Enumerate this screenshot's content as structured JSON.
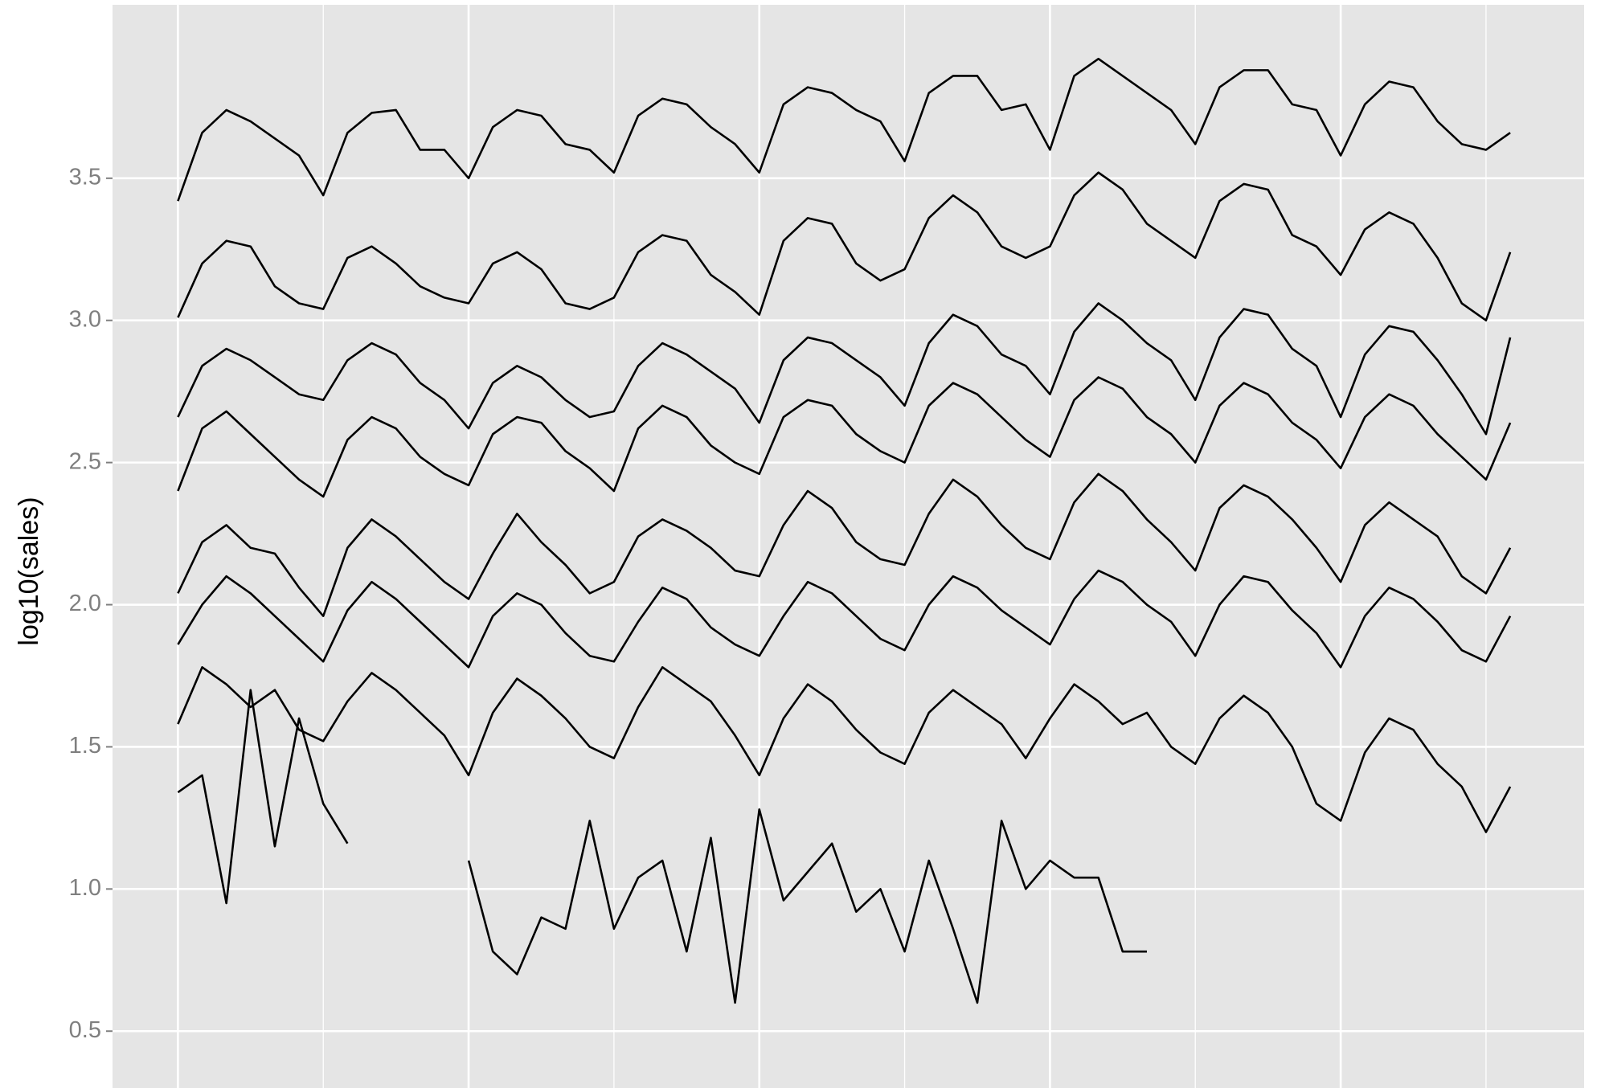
{
  "chart_data": {
    "type": "line",
    "y_label": "log10(sales)",
    "color": "#000000",
    "background": "#e5e5e5",
    "grid": true,
    "xlim": [
      -5.4,
      116.1
    ],
    "ylim": [
      0.3,
      4.11
    ],
    "xticks": [
      0,
      12,
      24,
      36,
      48,
      60,
      72,
      84,
      96,
      108
    ],
    "yticks": [
      0.5,
      {
        "value": 1,
        "label": "1.0"
      },
      1.5,
      {
        "value": 2,
        "label": "2.0"
      },
      2.5,
      {
        "value": 3,
        "label": "3.0"
      },
      3.5
    ],
    "x": [
      0,
      2,
      4,
      6,
      8,
      10,
      12,
      14,
      16,
      18,
      20,
      22,
      24,
      26,
      28,
      30,
      32,
      34,
      36,
      38,
      40,
      42,
      44,
      46,
      48,
      50,
      52,
      54,
      56,
      58,
      60,
      62,
      64,
      66,
      68,
      70,
      72,
      74,
      76,
      78,
      80,
      82,
      84,
      86,
      88,
      90,
      92,
      94,
      96,
      98,
      100,
      102,
      104,
      106,
      108,
      110
    ],
    "series": [
      {
        "values": [
          3.42,
          3.66,
          3.74,
          3.7,
          3.64,
          3.58,
          3.44,
          3.66,
          3.73,
          3.74,
          3.6,
          3.6,
          3.5,
          3.68,
          3.74,
          3.72,
          3.62,
          3.6,
          3.52,
          3.72,
          3.78,
          3.76,
          3.68,
          3.62,
          3.52,
          3.76,
          3.82,
          3.8,
          3.74,
          3.7,
          3.56,
          3.8,
          3.86,
          3.86,
          3.74,
          3.76,
          3.6,
          3.86,
          3.92,
          3.86,
          3.8,
          3.74,
          3.62,
          3.82,
          3.88,
          3.88,
          3.76,
          3.74,
          3.58,
          3.76,
          3.84,
          3.82,
          3.7,
          3.62,
          3.6,
          3.66
        ]
      },
      {
        "values": [
          3.01,
          3.2,
          3.28,
          3.26,
          3.12,
          3.06,
          3.04,
          3.22,
          3.26,
          3.2,
          3.12,
          3.08,
          3.06,
          3.2,
          3.24,
          3.18,
          3.06,
          3.04,
          3.08,
          3.24,
          3.3,
          3.28,
          3.16,
          3.1,
          3.02,
          3.28,
          3.36,
          3.34,
          3.2,
          3.14,
          3.18,
          3.36,
          3.44,
          3.38,
          3.26,
          3.22,
          3.26,
          3.44,
          3.52,
          3.46,
          3.34,
          3.28,
          3.22,
          3.42,
          3.48,
          3.46,
          3.3,
          3.26,
          3.16,
          3.32,
          3.38,
          3.34,
          3.22,
          3.06,
          3.0,
          3.24
        ]
      },
      {
        "values": [
          2.66,
          2.84,
          2.9,
          2.86,
          2.8,
          2.74,
          2.72,
          2.86,
          2.92,
          2.88,
          2.78,
          2.72,
          2.62,
          2.78,
          2.84,
          2.8,
          2.72,
          2.66,
          2.68,
          2.84,
          2.92,
          2.88,
          2.82,
          2.76,
          2.64,
          2.86,
          2.94,
          2.92,
          2.86,
          2.8,
          2.7,
          2.92,
          3.02,
          2.98,
          2.88,
          2.84,
          2.74,
          2.96,
          3.06,
          3.0,
          2.92,
          2.86,
          2.72,
          2.94,
          3.04,
          3.02,
          2.9,
          2.84,
          2.66,
          2.88,
          2.98,
          2.96,
          2.86,
          2.74,
          2.6,
          2.94
        ]
      },
      {
        "values": [
          2.4,
          2.62,
          2.68,
          2.6,
          2.52,
          2.44,
          2.38,
          2.58,
          2.66,
          2.62,
          2.52,
          2.46,
          2.42,
          2.6,
          2.66,
          2.64,
          2.54,
          2.48,
          2.4,
          2.62,
          2.7,
          2.66,
          2.56,
          2.5,
          2.46,
          2.66,
          2.72,
          2.7,
          2.6,
          2.54,
          2.5,
          2.7,
          2.78,
          2.74,
          2.66,
          2.58,
          2.52,
          2.72,
          2.8,
          2.76,
          2.66,
          2.6,
          2.5,
          2.7,
          2.78,
          2.74,
          2.64,
          2.58,
          2.48,
          2.66,
          2.74,
          2.7,
          2.6,
          2.52,
          2.44,
          2.64
        ]
      },
      {
        "values": [
          2.04,
          2.22,
          2.28,
          2.2,
          2.18,
          2.06,
          1.96,
          2.2,
          2.3,
          2.24,
          2.16,
          2.08,
          2.02,
          2.18,
          2.32,
          2.22,
          2.14,
          2.04,
          2.08,
          2.24,
          2.3,
          2.26,
          2.2,
          2.12,
          2.1,
          2.28,
          2.4,
          2.34,
          2.22,
          2.16,
          2.14,
          2.32,
          2.44,
          2.38,
          2.28,
          2.2,
          2.16,
          2.36,
          2.46,
          2.4,
          2.3,
          2.22,
          2.12,
          2.34,
          2.42,
          2.38,
          2.3,
          2.2,
          2.08,
          2.28,
          2.36,
          2.3,
          2.24,
          2.1,
          2.04,
          2.2
        ]
      },
      {
        "values": [
          1.86,
          2.0,
          2.1,
          2.04,
          1.96,
          1.88,
          1.8,
          1.98,
          2.08,
          2.02,
          1.94,
          1.86,
          1.78,
          1.96,
          2.04,
          2.0,
          1.9,
          1.82,
          1.8,
          1.94,
          2.06,
          2.02,
          1.92,
          1.86,
          1.82,
          1.96,
          2.08,
          2.04,
          1.96,
          1.88,
          1.84,
          2.0,
          2.1,
          2.06,
          1.98,
          1.92,
          1.86,
          2.02,
          2.12,
          2.08,
          2.0,
          1.94,
          1.82,
          2.0,
          2.1,
          2.08,
          1.98,
          1.9,
          1.78,
          1.96,
          2.06,
          2.02,
          1.94,
          1.84,
          1.8,
          1.96
        ]
      },
      {
        "values": [
          1.58,
          1.78,
          1.72,
          1.64,
          1.7,
          1.56,
          1.52,
          1.66,
          1.76,
          1.7,
          1.62,
          1.54,
          1.4,
          1.62,
          1.74,
          1.68,
          1.6,
          1.5,
          1.46,
          1.64,
          1.78,
          1.72,
          1.66,
          1.54,
          1.4,
          1.6,
          1.72,
          1.66,
          1.56,
          1.48,
          1.44,
          1.62,
          1.7,
          1.64,
          1.58,
          1.46,
          1.6,
          1.72,
          1.66,
          1.58,
          1.62,
          1.5,
          1.44,
          1.6,
          1.68,
          1.62,
          1.5,
          1.3,
          1.24,
          1.48,
          1.6,
          1.56,
          1.44,
          1.36,
          1.2,
          1.36
        ]
      },
      {
        "values": [
          null,
          null,
          null,
          null,
          null,
          null,
          null,
          null,
          null,
          null,
          null,
          null,
          1.1,
          0.78,
          0.7,
          0.9,
          0.86,
          1.24,
          0.86,
          1.04,
          1.1,
          0.78,
          1.18,
          0.6,
          1.28,
          0.96,
          1.06,
          1.16,
          0.92,
          1.0,
          0.78,
          1.1,
          0.86,
          0.6,
          1.24,
          1.0,
          1.1,
          1.04,
          1.04,
          0.78,
          0.78,
          null,
          null,
          null,
          null,
          null,
          null,
          null,
          null,
          null,
          null,
          null,
          null,
          null,
          null,
          null
        ]
      },
      {
        "values": [
          1.34,
          1.4,
          0.95,
          1.7,
          1.15,
          1.6,
          1.3,
          1.16,
          null,
          null,
          null,
          null,
          null,
          null,
          null,
          null,
          null,
          null,
          null,
          null,
          null,
          null,
          null,
          null,
          null,
          null,
          null,
          null,
          null,
          null,
          null,
          null,
          null,
          null,
          null,
          null,
          null,
          null,
          null,
          null,
          null,
          null,
          null,
          null,
          null,
          null,
          null,
          null,
          null,
          null,
          null,
          null,
          null,
          null,
          null,
          null
        ]
      }
    ]
  }
}
